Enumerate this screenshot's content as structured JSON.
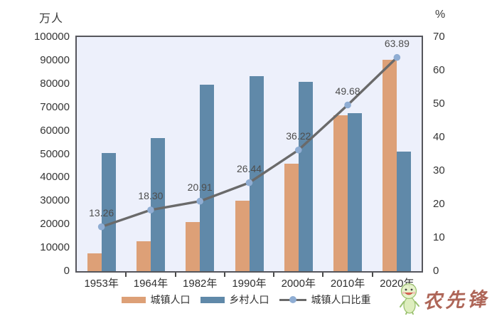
{
  "chart": {
    "left_unit": "万人",
    "right_unit": "%"
  },
  "legend": {
    "items": [
      {
        "label": "城镇人口",
        "swatch": "urban-bar-swatch"
      },
      {
        "label": "乡村人口",
        "swatch": "rural-bar-swatch"
      },
      {
        "label": "城镇人口比重",
        "swatch": "ratio-line-swatch"
      }
    ]
  },
  "watermark": {
    "text": "农先锋",
    "mascot_icon": "mascot-icon"
  },
  "colors": {
    "urban_bar": "#dda077",
    "rural_bar": "#6089a9",
    "ratio_line": "#6a6a6a",
    "ratio_marker": "#8fadd3",
    "plot_bg": "#edf0fb",
    "plot_border": "#55565c",
    "axis_text": "#353535",
    "value_label": "#4d4d4d",
    "watermark_text": "#a85a4a"
  },
  "chart_data": {
    "type": "bar",
    "subtype": "grouped bars with secondary-axis line",
    "categories": [
      "1953年",
      "1964年",
      "1982年",
      "1990年",
      "2000年",
      "2010年",
      "2020年"
    ],
    "series": [
      {
        "name": "城镇人口",
        "type": "bar",
        "axis": "left",
        "values": [
          7726,
          12710,
          21082,
          29971,
          45906,
          66557,
          90199
        ]
      },
      {
        "name": "乡村人口",
        "type": "bar",
        "axis": "left",
        "values": [
          50534,
          56748,
          79736,
          83397,
          80837,
          67415,
          50979
        ]
      },
      {
        "name": "城镇人口比重",
        "type": "line",
        "axis": "right",
        "values": [
          13.26,
          18.3,
          20.91,
          26.44,
          36.22,
          49.68,
          63.89
        ],
        "point_labels": [
          "13.26",
          "18.30",
          "20.91",
          "26.44",
          "36.22",
          "49.68",
          "63.89"
        ]
      }
    ],
    "left_axis": {
      "unit": "万人",
      "min": 0,
      "max": 100000,
      "step": 10000,
      "tick_labels": [
        "0",
        "10000",
        "20000",
        "30000",
        "40000",
        "50000",
        "60000",
        "70000",
        "80000",
        "90000",
        "100000"
      ]
    },
    "right_axis": {
      "unit": "%",
      "min": 0,
      "max": 70,
      "step": 10,
      "tick_labels": [
        "0",
        "10",
        "20",
        "30",
        "40",
        "50",
        "60",
        "70"
      ]
    },
    "grid": false,
    "legend_position": "bottom"
  }
}
